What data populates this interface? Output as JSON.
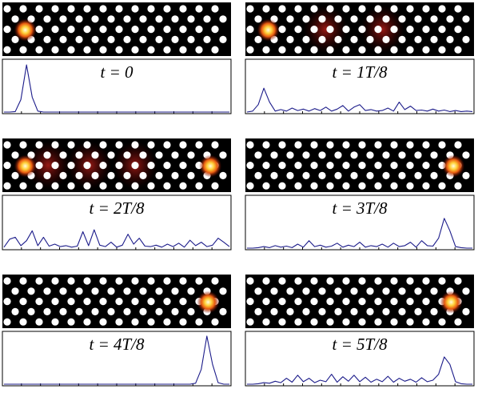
{
  "chart_data": [
    {
      "type": "line",
      "title": "t = 0",
      "color": "#1c1c8a",
      "ylim": [
        0,
        1
      ],
      "values": [
        0,
        0,
        0.01,
        0.25,
        0.95,
        0.3,
        0.02,
        0,
        0,
        0,
        0,
        0,
        0,
        0,
        0,
        0,
        0,
        0,
        0,
        0,
        0,
        0,
        0,
        0,
        0,
        0,
        0,
        0,
        0,
        0,
        0,
        0,
        0,
        0,
        0,
        0,
        0,
        0,
        0,
        0,
        0
      ]
    },
    {
      "type": "line",
      "title": "t = 1T/8",
      "color": "#1c1c8a",
      "ylim": [
        0,
        1
      ],
      "values": [
        0,
        0.02,
        0.15,
        0.48,
        0.2,
        0.02,
        0.05,
        0.02,
        0.08,
        0.03,
        0.06,
        0.02,
        0.07,
        0.03,
        0.1,
        0.02,
        0.06,
        0.13,
        0.02,
        0.1,
        0.15,
        0.03,
        0.05,
        0.02,
        0.03,
        0.08,
        0.02,
        0.2,
        0.05,
        0.12,
        0.03,
        0.04,
        0.02,
        0.06,
        0.02,
        0.04,
        0.01,
        0.03,
        0.01,
        0.02,
        0.01
      ]
    },
    {
      "type": "line",
      "title": "t = 2T/8",
      "color": "#1c1c8a",
      "ylim": [
        0,
        1
      ],
      "values": [
        0.02,
        0.18,
        0.22,
        0.05,
        0.15,
        0.35,
        0.05,
        0.22,
        0.04,
        0.08,
        0.03,
        0.05,
        0.02,
        0.04,
        0.33,
        0.05,
        0.37,
        0.06,
        0.03,
        0.12,
        0.02,
        0.06,
        0.28,
        0.08,
        0.2,
        0.04,
        0.03,
        0.06,
        0.02,
        0.08,
        0.03,
        0.1,
        0.02,
        0.16,
        0.05,
        0.12,
        0.03,
        0.06,
        0.2,
        0.12,
        0.03
      ]
    },
    {
      "type": "line",
      "title": "t = 3T/8",
      "color": "#1c1c8a",
      "ylim": [
        0,
        1
      ],
      "values": [
        0,
        0,
        0.01,
        0.03,
        0.01,
        0.05,
        0.02,
        0.04,
        0.01,
        0.08,
        0.02,
        0.15,
        0.03,
        0.06,
        0.02,
        0.04,
        0.1,
        0.02,
        0.06,
        0.03,
        0.12,
        0.02,
        0.05,
        0.03,
        0.08,
        0.02,
        0.1,
        0.03,
        0.05,
        0.12,
        0.02,
        0.15,
        0.05,
        0.04,
        0.2,
        0.6,
        0.35,
        0.03,
        0.01,
        0,
        0
      ]
    },
    {
      "type": "line",
      "title": "t = 4T/8",
      "color": "#1c1c8a",
      "ylim": [
        0,
        1
      ],
      "values": [
        0,
        0,
        0,
        0,
        0,
        0,
        0,
        0,
        0,
        0,
        0,
        0,
        0,
        0,
        0,
        0,
        0,
        0,
        0,
        0,
        0,
        0,
        0,
        0,
        0,
        0,
        0,
        0,
        0,
        0,
        0,
        0,
        0,
        0,
        0.02,
        0.3,
        0.97,
        0.4,
        0.03,
        0,
        0
      ]
    },
    {
      "type": "line",
      "title": "t = 5T/8",
      "color": "#1c1c8a",
      "ylim": [
        0,
        1
      ],
      "values": [
        0,
        0,
        0.01,
        0.03,
        0.02,
        0.06,
        0.03,
        0.12,
        0.04,
        0.18,
        0.05,
        0.12,
        0.03,
        0.08,
        0.05,
        0.2,
        0.04,
        0.15,
        0.06,
        0.18,
        0.05,
        0.14,
        0.04,
        0.1,
        0.05,
        0.16,
        0.04,
        0.12,
        0.06,
        0.1,
        0.04,
        0.13,
        0.05,
        0.08,
        0.2,
        0.55,
        0.4,
        0.05,
        0.01,
        0,
        0
      ]
    }
  ]
}
